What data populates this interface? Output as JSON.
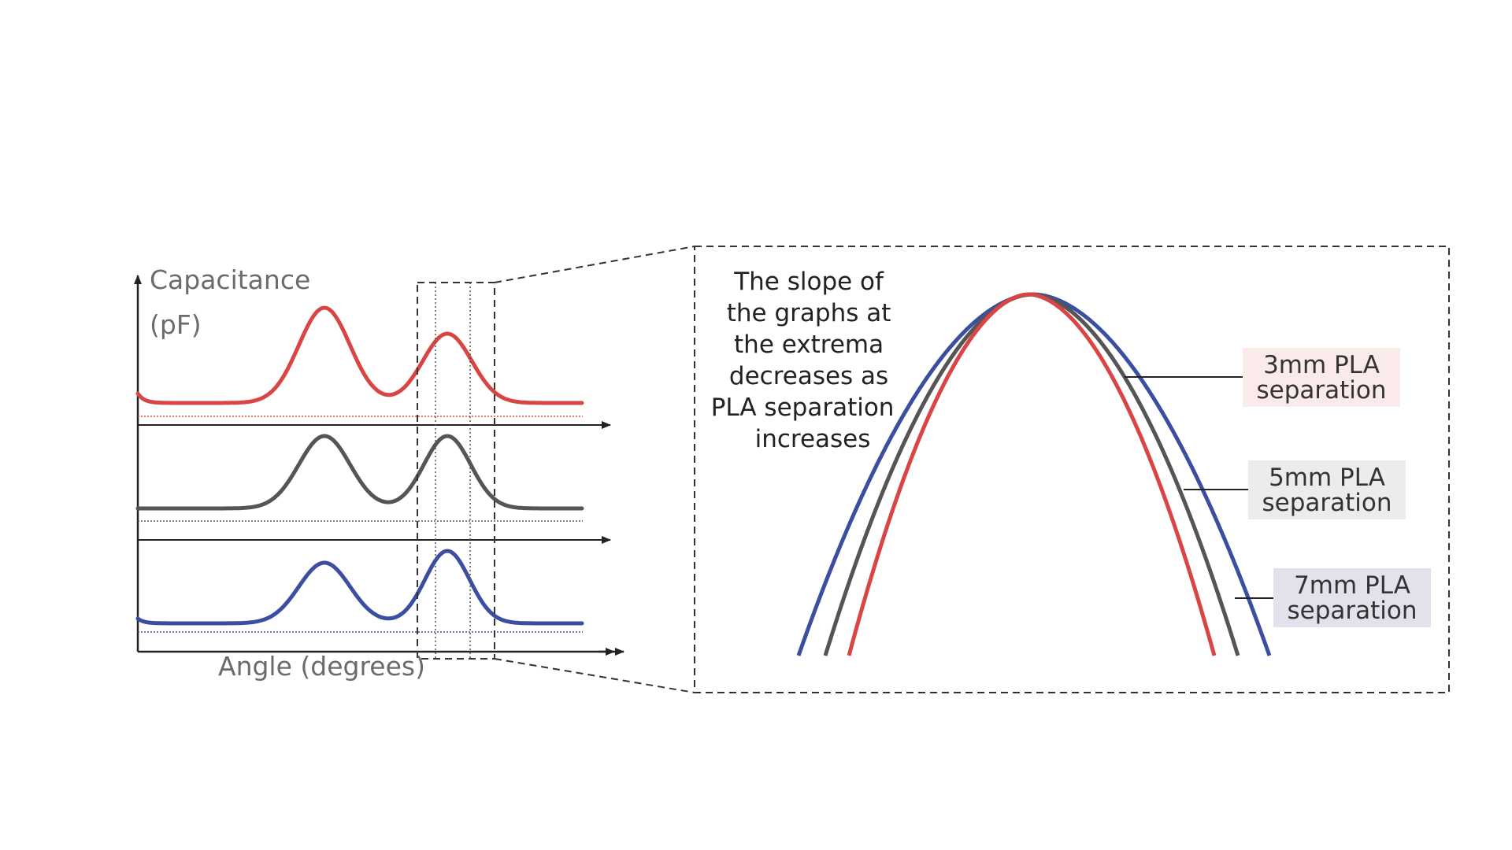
{
  "axes": {
    "y_label_line1": "Capacitance",
    "y_label_line2": "(pF)",
    "x_label": "Angle (degrees)"
  },
  "annotation": {
    "lines": [
      "The slope of",
      "the graphs at",
      "the extrema",
      "decreases as",
      "PLA separation",
      "increases"
    ]
  },
  "legend": [
    {
      "line1": "3mm PLA",
      "line2": "separation",
      "color": "#d94545",
      "bg": "#fbeaea"
    },
    {
      "line1": "5mm PLA",
      "line2": "separation",
      "color": "#555555",
      "bg": "#ececec"
    },
    {
      "line1": "7mm PLA",
      "line2": "separation",
      "color": "#3b4ea0",
      "bg": "#e4e1ec"
    }
  ],
  "colors": {
    "red": "#d94545",
    "gray": "#555555",
    "blue": "#3b4ea0",
    "axis": "#222222",
    "dash": "#333333"
  },
  "icons": [
    "arrow-icon"
  ]
}
